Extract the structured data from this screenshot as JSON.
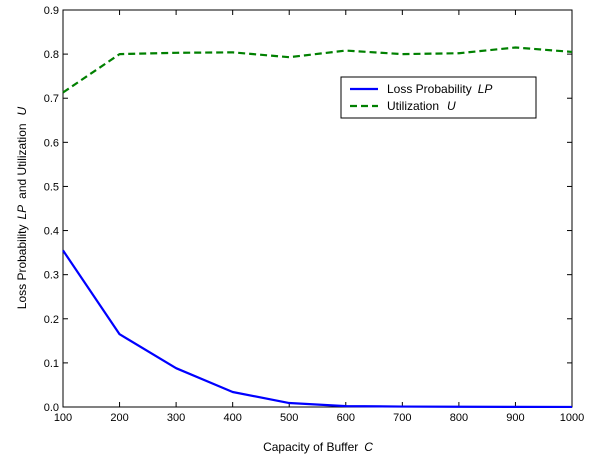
{
  "chart_data": {
    "type": "line",
    "x": [
      100,
      200,
      300,
      400,
      500,
      600,
      700,
      800,
      900,
      1000
    ],
    "series": [
      {
        "name": "Loss Probability",
        "name_symbol": "LP",
        "values": [
          0.355,
          0.165,
          0.088,
          0.034,
          0.009,
          0.002,
          0.001,
          0.0005,
          0.0002,
          0.0001
        ],
        "color": "#0000ff",
        "style": "solid"
      },
      {
        "name": "Utilization",
        "name_symbol": "U",
        "values": [
          0.713,
          0.8,
          0.803,
          0.804,
          0.793,
          0.808,
          0.8,
          0.802,
          0.815,
          0.805
        ],
        "color": "#008000",
        "style": "dashed"
      }
    ],
    "xlabel": "Capacity of Buffer",
    "xlabel_symbol": "C",
    "ylabel": "Loss Probability",
    "ylabel_symbol_1": "LP",
    "ylabel_mid": "and Utilization",
    "ylabel_symbol_2": "U",
    "xlim": [
      100,
      1000
    ],
    "ylim": [
      0,
      0.9
    ],
    "xticks": [
      100,
      200,
      300,
      400,
      500,
      600,
      700,
      800,
      900,
      1000
    ],
    "xtick_labels": [
      "100",
      "200",
      "300",
      "400",
      "500",
      "600",
      "700",
      "800",
      "900",
      "1000"
    ],
    "yticks": [
      0,
      0.1,
      0.2,
      0.3,
      0.4,
      0.5,
      0.6,
      0.7,
      0.8,
      0.9
    ],
    "ytick_labels": [
      "0.0",
      "0.1",
      "0.2",
      "0.3",
      "0.4",
      "0.5",
      "0.6",
      "0.7",
      "0.8",
      "0.9"
    ],
    "grid": false,
    "legend_position": "upper-right-inside"
  }
}
